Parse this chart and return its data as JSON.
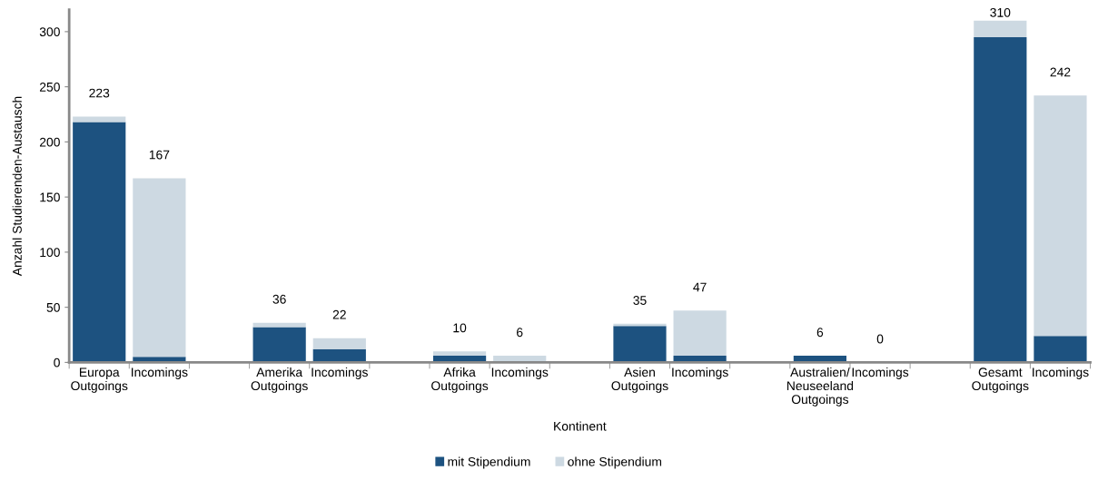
{
  "chart_data": {
    "type": "bar",
    "stacked": true,
    "xlabel": "Kontinent",
    "ylabel": "Anzahl Studierenden-Austausch",
    "categories": [
      "Europa\nOutgoings",
      "Incomings",
      null,
      "Amerika\nOutgoings",
      "Incomings",
      null,
      "Afrika\nOutgoings",
      "Incomings",
      null,
      "Asien\nOutgoings",
      "Incomings",
      null,
      "Australien/\nNeuseeland\nOutgoings",
      "Incomings",
      null,
      "Gesamt\nOutgoings",
      "Incomings"
    ],
    "series": [
      {
        "name": "mit Stipendium",
        "color": "#1d5280",
        "values": [
          218,
          5,
          null,
          32,
          12,
          null,
          6,
          0,
          null,
          33,
          6,
          null,
          6,
          0,
          null,
          295,
          24
        ]
      },
      {
        "name": "ohne Stipendium",
        "color": "#cdd9e2",
        "values": [
          5,
          162,
          null,
          4,
          10,
          null,
          4,
          6,
          null,
          2,
          41,
          null,
          0,
          0,
          null,
          15,
          218
        ]
      }
    ],
    "totals": [
      "223",
      "167",
      null,
      "36",
      "22",
      null,
      "10",
      "6",
      null,
      "35",
      "47",
      null,
      "6",
      "0",
      null,
      "310",
      "242"
    ],
    "ylim": [
      0,
      320
    ],
    "yticks": [
      0,
      50,
      100,
      150,
      200,
      250,
      300
    ],
    "grid": false,
    "legend": "bottom"
  }
}
